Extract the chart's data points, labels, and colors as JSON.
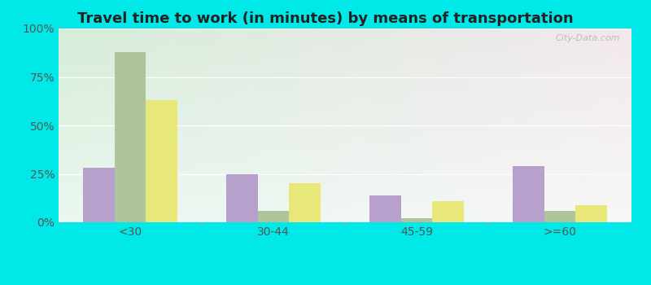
{
  "title": "Travel time to work (in minutes) by means of transportation",
  "categories": [
    "<30",
    "30-44",
    "45-59",
    ">=60"
  ],
  "series": {
    "Public transportation - Arizona": [
      28,
      25,
      14,
      29
    ],
    "Other means - Winslow": [
      88,
      6,
      2,
      6
    ],
    "Other means - Arizona": [
      63,
      20,
      11,
      9
    ]
  },
  "bar_colors": {
    "Public transportation - Arizona": "#b8a0cc",
    "Other means - Winslow": "#aec49a",
    "Other means - Arizona": "#e8e87a"
  },
  "legend_marker_colors": {
    "Public transportation - Arizona": "#e8a8c8",
    "Other means - Winslow": "#c8d4a0",
    "Other means - Arizona": "#e0d850"
  },
  "ylim": [
    0,
    100
  ],
  "yticks": [
    0,
    25,
    50,
    75,
    100
  ],
  "ytick_labels": [
    "0%",
    "25%",
    "50%",
    "75%",
    "100%"
  ],
  "outer_bg": "#00e8e8",
  "watermark": "City-Data.com",
  "bar_width": 0.22,
  "title_fontsize": 13,
  "tick_fontsize": 10
}
